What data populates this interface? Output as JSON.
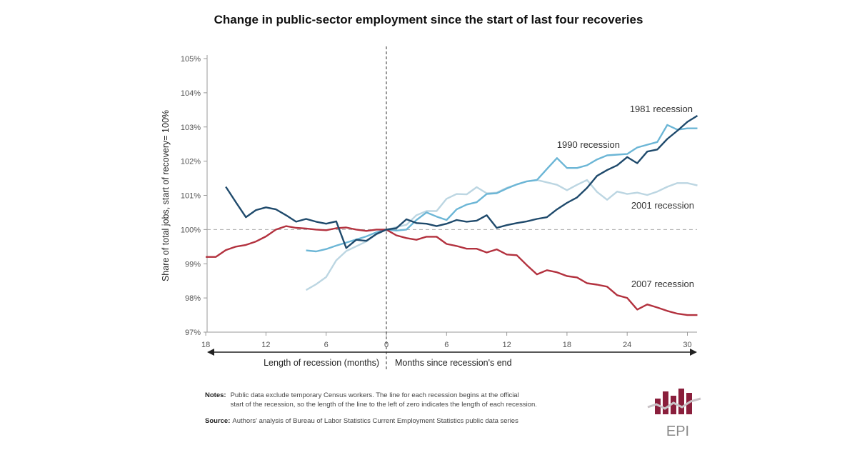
{
  "chart_data": {
    "type": "line",
    "title": "Change in public-sector employment since the start of last four recoveries",
    "ylabel": "Share of total jobs, start of recovery= 100%",
    "xlabel_left": "Length of recession (months)",
    "xlabel_right": "Months since recession's end",
    "ylim": [
      97,
      105
    ],
    "xlim": [
      -18,
      31
    ],
    "yticks": [
      97,
      98,
      99,
      100,
      101,
      102,
      103,
      104,
      105
    ],
    "ytick_labels": [
      "97%",
      "98%",
      "99%",
      "100%",
      "101%",
      "102%",
      "103%",
      "104%",
      "105%"
    ],
    "xticks": [
      -18,
      -12,
      -6,
      0,
      6,
      12,
      18,
      24,
      30
    ],
    "xtick_labels": [
      "18",
      "12",
      "6",
      "0",
      "6",
      "12",
      "18",
      "24",
      "30"
    ],
    "reference_line": 100,
    "grid": false,
    "series": [
      {
        "name": "1981 recession",
        "color": "#1f4a6c",
        "start": -16,
        "values": [
          101.25,
          100.8,
          100.36,
          100.57,
          100.65,
          100.59,
          100.42,
          100.23,
          100.31,
          100.23,
          100.17,
          100.24,
          99.46,
          99.7,
          99.67,
          99.87,
          100,
          100.04,
          100.3,
          100.19,
          100.17,
          100.1,
          100.17,
          100.28,
          100.23,
          100.26,
          100.42,
          100.05,
          100.13,
          100.19,
          100.24,
          100.31,
          100.36,
          100.59,
          100.78,
          100.94,
          101.22,
          101.57,
          101.74,
          101.88,
          102.12,
          101.94,
          102.28,
          102.34,
          102.65,
          102.89,
          103.15,
          103.33
        ]
      },
      {
        "name": "1990 recession",
        "color": "#6cb6d6",
        "start": -8,
        "values": [
          99.39,
          99.36,
          99.43,
          99.53,
          99.62,
          99.71,
          99.8,
          99.92,
          100,
          99.97,
          100,
          100.28,
          100.5,
          100.38,
          100.28,
          100.59,
          100.73,
          100.8,
          101.04,
          101.06,
          101.2,
          101.32,
          101.41,
          101.45,
          101.77,
          102.09,
          101.8,
          101.8,
          101.88,
          102.05,
          102.17,
          102.19,
          102.21,
          102.4,
          102.48,
          102.56,
          103.06,
          102.92,
          102.96,
          102.96
        ]
      },
      {
        "name": "2001 recession",
        "color": "#bcd6e2",
        "start": -8,
        "values": [
          98.23,
          98.4,
          98.61,
          99.1,
          99.37,
          99.51,
          99.65,
          99.86,
          100,
          100.07,
          100.14,
          100.42,
          100.54,
          100.54,
          100.9,
          101.04,
          101.03,
          101.24,
          101.06,
          101.08,
          101.22,
          101.32,
          101.41,
          101.45,
          101.38,
          101.31,
          101.15,
          101.31,
          101.45,
          101.1,
          100.87,
          101.11,
          101.04,
          101.08,
          101.01,
          101.11,
          101.25,
          101.36,
          101.36,
          101.29
        ]
      },
      {
        "name": "2007 recession",
        "color": "#b3323f",
        "start": -18,
        "values": [
          99.2,
          99.2,
          99.4,
          99.5,
          99.55,
          99.65,
          99.8,
          100,
          100.1,
          100.05,
          100.03,
          100,
          99.98,
          100.04,
          100.06,
          100,
          99.96,
          100,
          100,
          99.83,
          99.75,
          99.7,
          99.79,
          99.79,
          99.58,
          99.52,
          99.44,
          99.44,
          99.33,
          99.42,
          99.27,
          99.25,
          98.96,
          98.69,
          98.81,
          98.75,
          98.64,
          98.6,
          98.43,
          98.39,
          98.33,
          98.08,
          98,
          97.66,
          97.81,
          97.72,
          97.62,
          97.54,
          97.5,
          97.5
        ]
      }
    ]
  },
  "notes": {
    "notes_label": "Notes:",
    "notes_line1": "Public data exclude temporary Census workers.  The line for each recession begins at the official",
    "notes_line2": "start of the recession, so the length of the line to the left of zero indicates the length of each recession.",
    "source_label": "Source:",
    "source_text": "Authors' analysis of Bureau of Labor Statistics Current Employment Statistics public data series"
  },
  "logo": {
    "text": "EPI",
    "color": "#8a1f3c"
  }
}
